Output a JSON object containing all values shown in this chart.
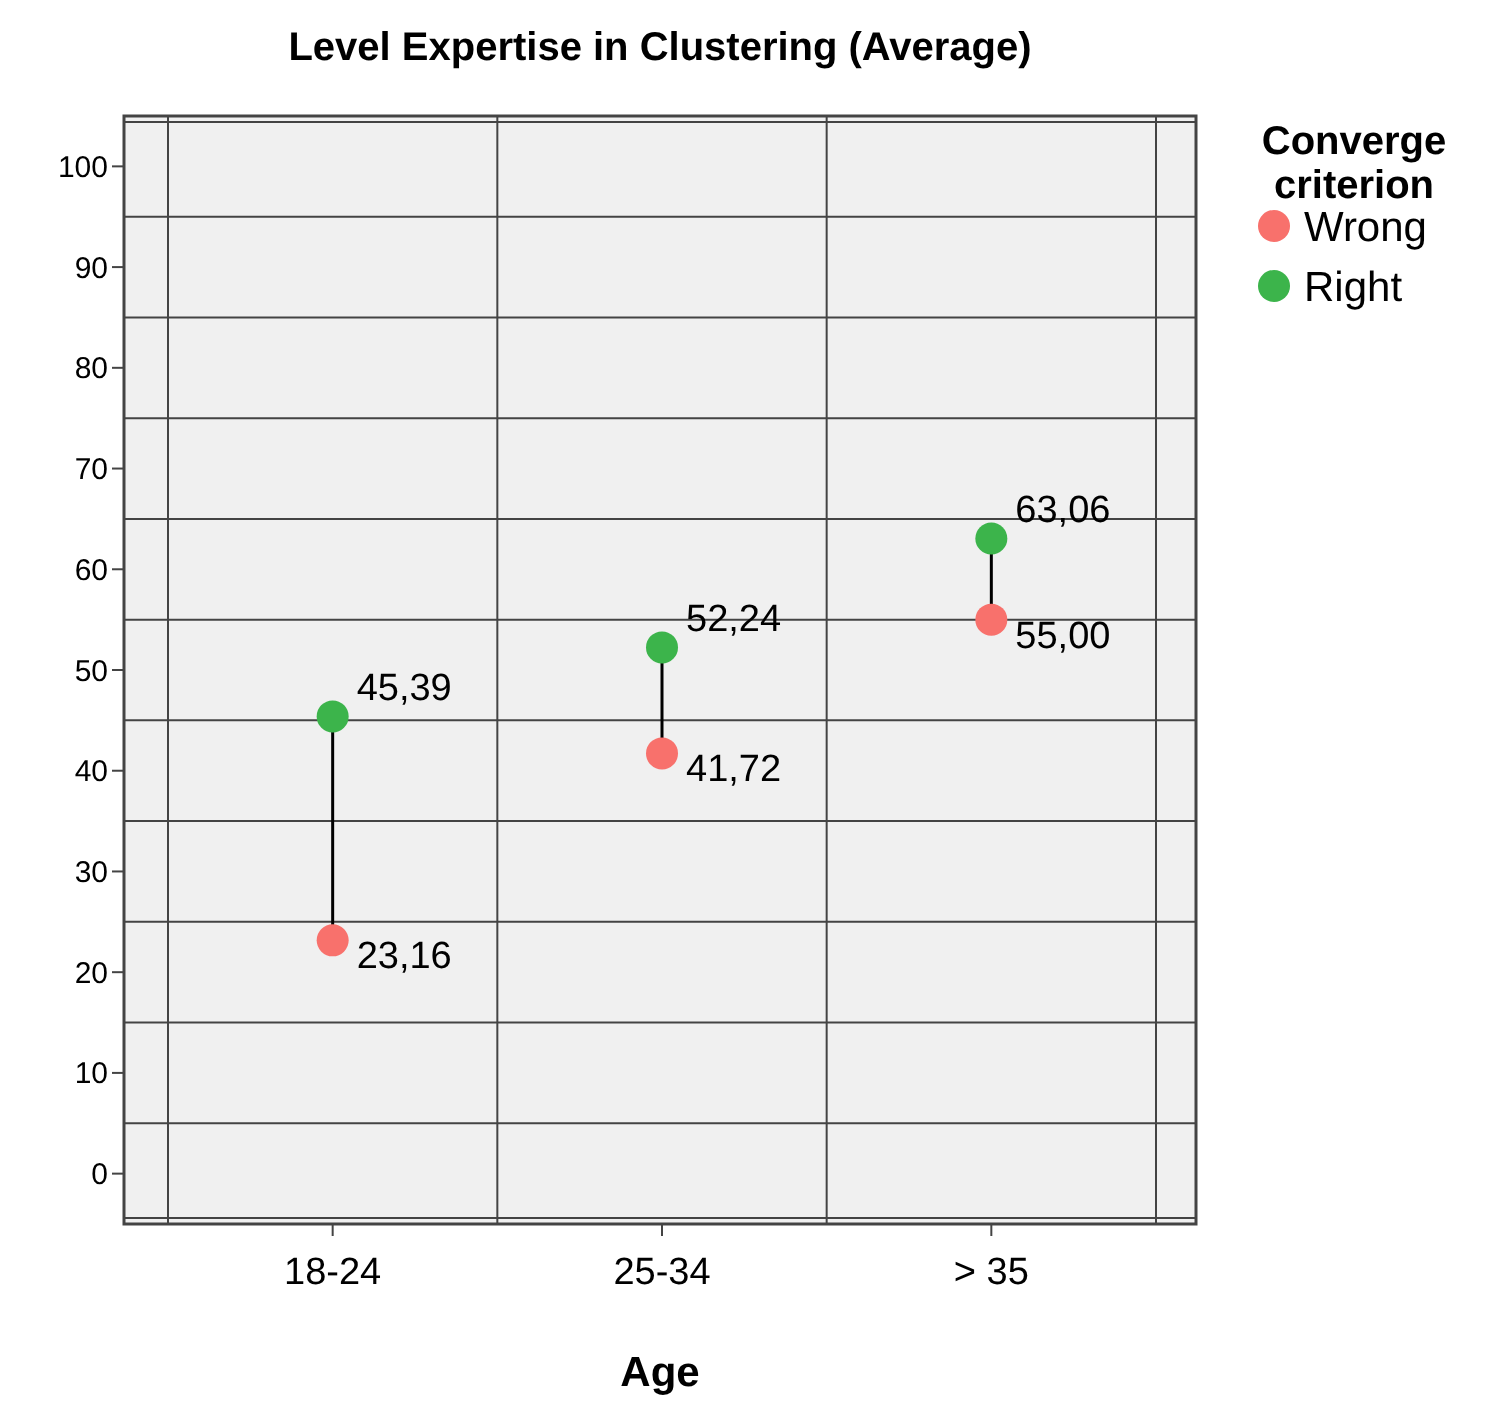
{
  "chart_data": {
    "type": "scatter",
    "title": "Level Expertise in Clustering (Average)",
    "xlabel": "Age",
    "legend_title": "Converge criterion",
    "categories": [
      "18-24",
      "25-34",
      "> 35"
    ],
    "series": [
      {
        "name": "Wrong",
        "color": "#f8716c",
        "values": [
          23.16,
          41.72,
          55.0
        ],
        "value_labels": [
          "23,16",
          "41,72",
          "55,00"
        ]
      },
      {
        "name": "Right",
        "color": "#3cb44b",
        "values": [
          45.39,
          52.24,
          63.06
        ],
        "value_labels": [
          "45,39",
          "52,24",
          "63,06"
        ]
      }
    ],
    "ylim": [
      -5,
      105
    ],
    "yticks": [
      0,
      {
        "value": 5,
        "label": null
      },
      10,
      {
        "value": 15,
        "label": null
      },
      20,
      {
        "value": 25,
        "label": null
      },
      30,
      {
        "value": 35,
        "label": null
      },
      40,
      {
        "value": 45,
        "label": null
      },
      50,
      {
        "value": 55,
        "label": null
      },
      60,
      {
        "value": 65,
        "label": null
      },
      70,
      {
        "value": 75,
        "label": null
      },
      80,
      {
        "value": 85,
        "label": null
      },
      90,
      {
        "value": 95,
        "label": null
      },
      100
    ],
    "grid": true,
    "legend": "top right",
    "marker": "circle"
  }
}
